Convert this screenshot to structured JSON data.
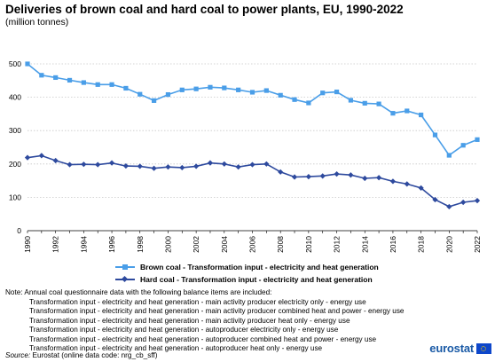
{
  "chart_data": {
    "type": "line",
    "title": "Deliveries of brown coal and hard coal to power plants, EU, 1990-2022",
    "subtitle": "(million tonnes)",
    "x": [
      "1990",
      "1991",
      "1992",
      "1993",
      "1994",
      "1995",
      "1996",
      "1997",
      "1998",
      "1999",
      "2000",
      "2001",
      "2002",
      "2003",
      "2004",
      "2005",
      "2006",
      "2007",
      "2008",
      "2009",
      "2010",
      "2011",
      "2012",
      "2013",
      "2014",
      "2015",
      "2016",
      "2017",
      "2018",
      "2019",
      "2020",
      "2021",
      "2022"
    ],
    "x_tick_labels": [
      "1990",
      "1992",
      "1994",
      "1996",
      "1998",
      "2000",
      "2002",
      "2004",
      "2006",
      "2008",
      "2010",
      "2012",
      "2014",
      "2016",
      "2018",
      "2020",
      "2022"
    ],
    "y_ticks": [
      "0",
      "100",
      "200",
      "300",
      "400",
      "500"
    ],
    "ylim": [
      0,
      500
    ],
    "grid": "horizontal dotted",
    "legend_position": "bottom",
    "series": [
      {
        "name": "Brown coal - Transformation input - electricity and heat generation",
        "color": "#4a9ee8",
        "marker": "square",
        "values": [
          500,
          466,
          459,
          451,
          444,
          438,
          438,
          427,
          409,
          390,
          408,
          422,
          425,
          430,
          428,
          422,
          415,
          420,
          406,
          393,
          383,
          413,
          416,
          391,
          382,
          380,
          352,
          359,
          347,
          287,
          226,
          256,
          273
        ]
      },
      {
        "name": "Hard coal - Transformation input - electricity and heat generation",
        "color": "#2e4a9e",
        "marker": "diamond",
        "values": [
          219,
          225,
          210,
          198,
          199,
          198,
          203,
          194,
          193,
          187,
          191,
          189,
          193,
          203,
          200,
          191,
          198,
          200,
          176,
          161,
          162,
          164,
          170,
          167,
          157,
          159,
          148,
          140,
          128,
          93,
          72,
          85,
          90
        ]
      }
    ]
  },
  "note": {
    "intro": "Note: Annual coal questionnaire data with the following balance items are included:",
    "items": [
      "Transformation input - electricity and heat generation - main activity producer electricity only - energy use",
      "Transformation input - electricity and heat generation - main activity producer combined heat and power - energy use",
      "Transformation input - electricity and heat generation - main activity producer heat only - energy use",
      "Transformation input - electricity and heat generation - autoproducer electricity only - energy use",
      "Transformation input - electricity and heat generation - autoproducer combined heat and power - energy use",
      "Transformation input - electricity and heat generation - autoproducer heat only - energy use"
    ]
  },
  "source": {
    "label": "Source:",
    "text": " Eurostat (online data code: nrg_cb_sff)"
  },
  "logo": {
    "text": "eurostat",
    "icon": "eu-flag-icon"
  }
}
